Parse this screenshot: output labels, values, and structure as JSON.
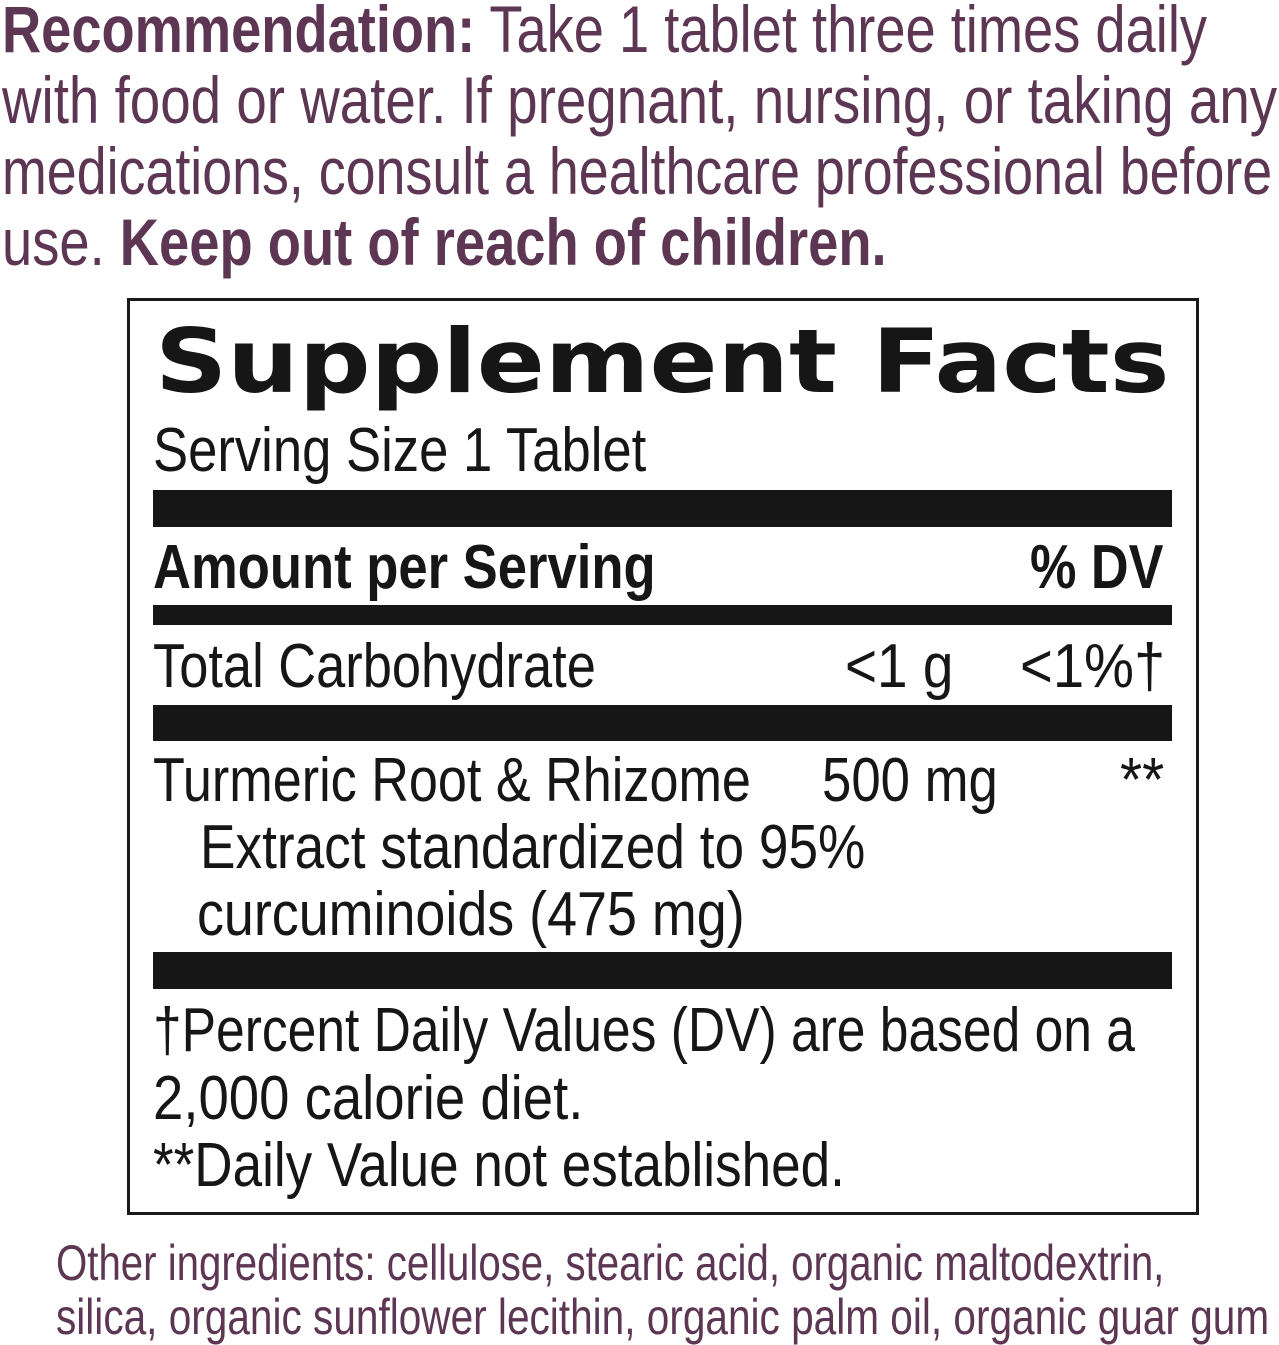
{
  "recommendation": {
    "label": "Recommendation:",
    "lines": [
      " Take 1 tablet three times daily",
      "with food or water. If pregnant, nursing, or taking any",
      "medications, consult a healthcare professional before",
      "use. "
    ],
    "warning": "Keep out of reach of children."
  },
  "facts": {
    "title": "Supplement Facts",
    "serving_size": "Serving Size 1 Tablet",
    "header_amount": "Amount per Serving",
    "header_dv": "% DV",
    "rows": [
      {
        "name": "Total Carbohydrate",
        "amount": "<1 g",
        "dv": "<1%†"
      },
      {
        "name": "Turmeric Root & Rhizome",
        "amount": "500 mg",
        "dv": "**",
        "detail": [
          "Extract standardized to 95%",
          "curcuminoids (475 mg)"
        ]
      }
    ],
    "footnotes": [
      "†Percent Daily Values (DV) are based on a",
      "2,000 calorie diet.",
      "**Daily Value not established."
    ]
  },
  "other_ingredients": [
    "Other ingredients: cellulose, stearic acid, organic maltodextrin,",
    "silica, organic sunflower lecithin, organic palm oil, organic guar gum"
  ],
  "colors": {
    "accent": "#5c3653",
    "text": "#161616"
  }
}
